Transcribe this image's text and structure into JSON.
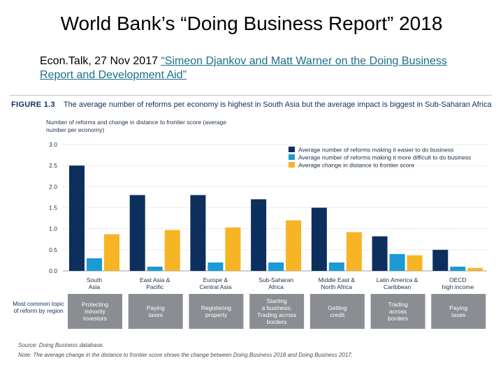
{
  "slide": {
    "title": "World Bank’s “Doing Business Report” 2018",
    "subtitle_prefix": "Econ.Talk, 27 Nov 2017 ",
    "subtitle_link": "“Simeon Djankov and Matt Warner on the Doing Business Report and Development Aid”"
  },
  "figure": {
    "number": "FIGURE 1.3",
    "caption": "The average number of reforms per economy is highest in South Asia but the average impact is biggest in Sub-Saharan Africa",
    "side_label": "Most common topic of reform by region",
    "source": "Source: Doing Business database.",
    "note": "Note: The average change in the distance to frontier score shows the change between Doing Business 2018 and Doing Business 2017."
  },
  "chart_data": {
    "type": "bar",
    "title": "The average number of reforms per economy is highest in South Asia but the average impact is biggest in Sub-Saharan Africa",
    "ylabel": "Number of reforms and change in distance to frontier score (average number per economy)",
    "ylim": [
      0,
      3.0
    ],
    "yticks": [
      "3.0",
      "2.5",
      "2.0",
      "1.5",
      "1.0",
      "0.5",
      "0.0"
    ],
    "grid": true,
    "legend_position": "top-right",
    "categories": [
      [
        "South",
        "Asia"
      ],
      [
        "East Asia &",
        "Pacific"
      ],
      [
        "Europe &",
        "Central Asia"
      ],
      [
        "Sub-Saharan",
        "Africa"
      ],
      [
        "Middle East &",
        "North Africa"
      ],
      [
        "Latin America &",
        "Caribbean"
      ],
      [
        "OECD",
        "high income"
      ]
    ],
    "series": [
      {
        "name": "Average number of reforms making it easier to do business",
        "color": "#0d2f5e",
        "values": [
          2.5,
          1.8,
          1.8,
          1.7,
          1.5,
          0.82,
          0.5
        ]
      },
      {
        "name": "Average number of reforms making it more difficult to do business",
        "color": "#1b9ad6",
        "values": [
          0.3,
          0.1,
          0.2,
          0.2,
          0.2,
          0.4,
          0.1
        ]
      },
      {
        "name": "Average change in distance to frontier score",
        "color": "#f7b424",
        "values": [
          0.87,
          0.97,
          1.03,
          1.2,
          0.92,
          0.37,
          0.07
        ]
      }
    ],
    "reform_topics": [
      [
        "Protecting",
        "minority",
        "investors"
      ],
      [
        "Paying",
        "taxes"
      ],
      [
        "Registering",
        "property"
      ],
      [
        "Starting",
        "a business;",
        "Trading across",
        "borders"
      ],
      [
        "Getting",
        "credit"
      ],
      [
        "Trading",
        "across",
        "borders"
      ],
      [
        "Paying",
        "taxes"
      ]
    ]
  }
}
